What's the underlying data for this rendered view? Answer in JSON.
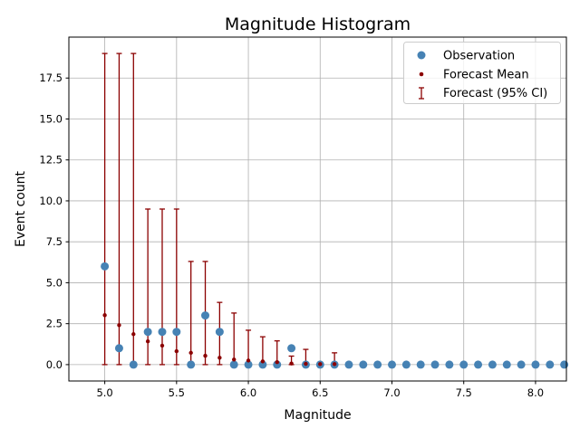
{
  "chart_data": {
    "type": "scatter",
    "title": "Magnitude Histogram",
    "xlabel": "Magnitude",
    "ylabel": "Event count",
    "xlim": [
      4.75,
      8.215
    ],
    "ylim": [
      -1.0,
      20.0
    ],
    "grid": true,
    "legend_position": "top-right",
    "xticks": [
      "5.0",
      "5.5",
      "6.0",
      "6.5",
      "7.0",
      "7.5",
      "8.0"
    ],
    "yticks": [
      "0.0",
      "2.5",
      "5.0",
      "7.5",
      "10.0",
      "12.5",
      "15.0",
      "17.5"
    ],
    "legend": [
      "Observation",
      "Forecast Mean",
      "Forecast (95% CI)"
    ],
    "colors": {
      "observation": "#4682b4",
      "forecast": "#8b0000",
      "grid": "#b0b0b0"
    },
    "observation": {
      "x": [
        5.0,
        5.1,
        5.2,
        5.3,
        5.4,
        5.5,
        5.6,
        5.7,
        5.8,
        5.9,
        6.0,
        6.1,
        6.2,
        6.3,
        6.4,
        6.5,
        6.6,
        6.7,
        6.8,
        6.9,
        7.0,
        7.1,
        7.2,
        7.3,
        7.4,
        7.5,
        7.6,
        7.7,
        7.8,
        7.9,
        8.0,
        8.1,
        8.2
      ],
      "y": [
        6,
        1,
        0,
        2,
        2,
        2,
        0,
        3,
        2,
        0,
        0,
        0,
        0,
        1,
        0,
        0,
        0,
        0,
        0,
        0,
        0,
        0,
        0,
        0,
        0,
        0,
        0,
        0,
        0,
        0,
        0,
        0,
        0
      ]
    },
    "forecast": {
      "x": [
        5.0,
        5.1,
        5.2,
        5.3,
        5.4,
        5.5,
        5.6,
        5.7,
        5.8,
        5.9,
        6.0,
        6.1,
        6.2,
        6.3,
        6.4,
        6.5,
        6.6
      ],
      "mean": [
        3.02,
        2.41,
        1.86,
        1.42,
        1.16,
        0.82,
        0.72,
        0.54,
        0.42,
        0.31,
        0.25,
        0.2,
        0.15,
        0.07,
        0.05,
        0.03,
        0.03
      ],
      "ci_low": [
        0,
        0,
        0,
        0,
        0,
        0,
        0,
        0,
        0,
        0,
        0,
        0,
        0,
        0,
        0,
        0,
        0
      ],
      "ci_high": [
        19,
        19,
        19,
        9.5,
        9.5,
        9.5,
        6.3,
        6.3,
        3.8,
        3.15,
        2.1,
        1.7,
        1.45,
        0.52,
        0.93,
        0,
        0.72
      ]
    }
  }
}
